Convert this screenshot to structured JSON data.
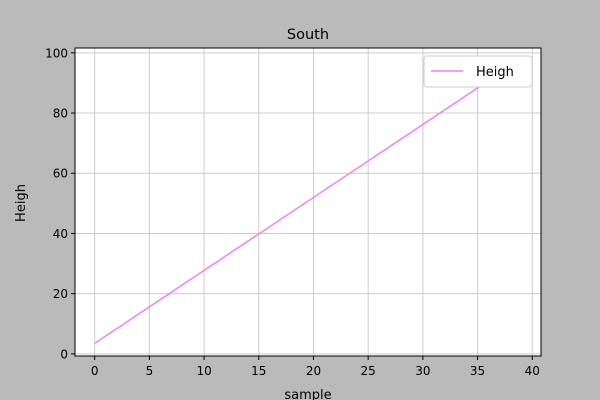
{
  "chart_data": {
    "type": "line",
    "title": "South",
    "xlabel": "sample",
    "ylabel": "Heigh",
    "xlim": [
      -1.8,
      40.8
    ],
    "ylim": [
      -0.7,
      101.6
    ],
    "xticks": [
      0,
      5,
      10,
      15,
      20,
      25,
      30,
      35,
      40
    ],
    "yticks": [
      0,
      20,
      40,
      60,
      80,
      100
    ],
    "grid": true,
    "legend_position": "top-right",
    "series": [
      {
        "name": "Heigh",
        "color": "#ee82ee",
        "x": [
          0,
          39
        ],
        "y": [
          3.5,
          98
        ]
      }
    ]
  }
}
